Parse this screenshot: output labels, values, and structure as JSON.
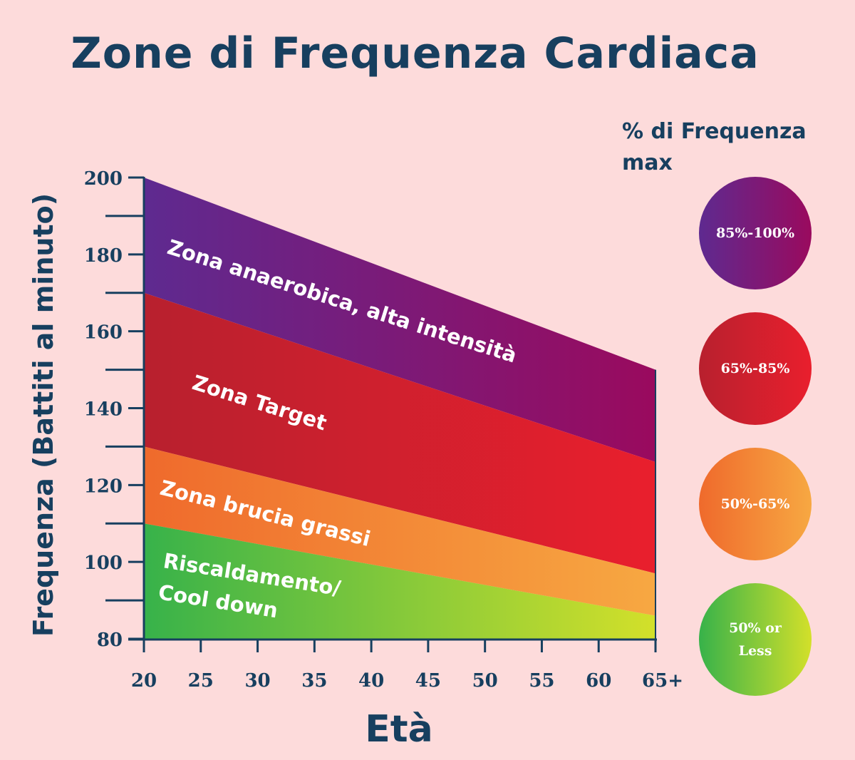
{
  "chart_data": {
    "type": "area",
    "title": "Zone di Frequenza Cardiaca",
    "xlabel": "Età",
    "ylabel": "Frequenza (Battiti al minuto)",
    "categories": [
      "20",
      "25",
      "30",
      "35",
      "40",
      "45",
      "50",
      "55",
      "60",
      "65+"
    ],
    "x_ages": [
      20,
      65
    ],
    "ylim": [
      80,
      200
    ],
    "yticks": [
      80,
      100,
      120,
      140,
      160,
      180,
      200
    ],
    "yticks_minor": [
      90,
      110,
      130,
      150,
      170,
      190
    ],
    "boundaries": {
      "max": [
        200,
        150
      ],
      "b85": [
        170,
        126
      ],
      "b65": [
        130,
        97
      ],
      "b50": [
        110,
        86
      ]
    },
    "zones": [
      {
        "name": "Zona anaerobica, alta intensità",
        "range": "85%-100%",
        "color_start": "#5e2a90",
        "color_end": "#9a0a5e",
        "upper": "max",
        "lower": "b85"
      },
      {
        "name": "Zona Target",
        "range": "65%-85%",
        "color_start": "#b8202e",
        "color_end": "#e91f2d",
        "upper": "b85",
        "lower": "b65"
      },
      {
        "name": "Zona brucia grassi",
        "range": "50%-65%",
        "color_start": "#ef6a2c",
        "color_end": "#f7a842",
        "upper": "b65",
        "lower": "b50"
      },
      {
        "name_lines": [
          "Riscaldamento/",
          "Cool down"
        ],
        "range_lines": [
          "50% or",
          "Less"
        ],
        "color_start": "#37b24a",
        "color_end": "#d3e02a",
        "upper": "b50",
        "lower": "floor"
      }
    ],
    "legend_title": "% di Frequenza max",
    "legend_position": "right"
  },
  "colors": {
    "background": "#fddbdb",
    "text": "#173f5f",
    "label": "#ffffff"
  }
}
